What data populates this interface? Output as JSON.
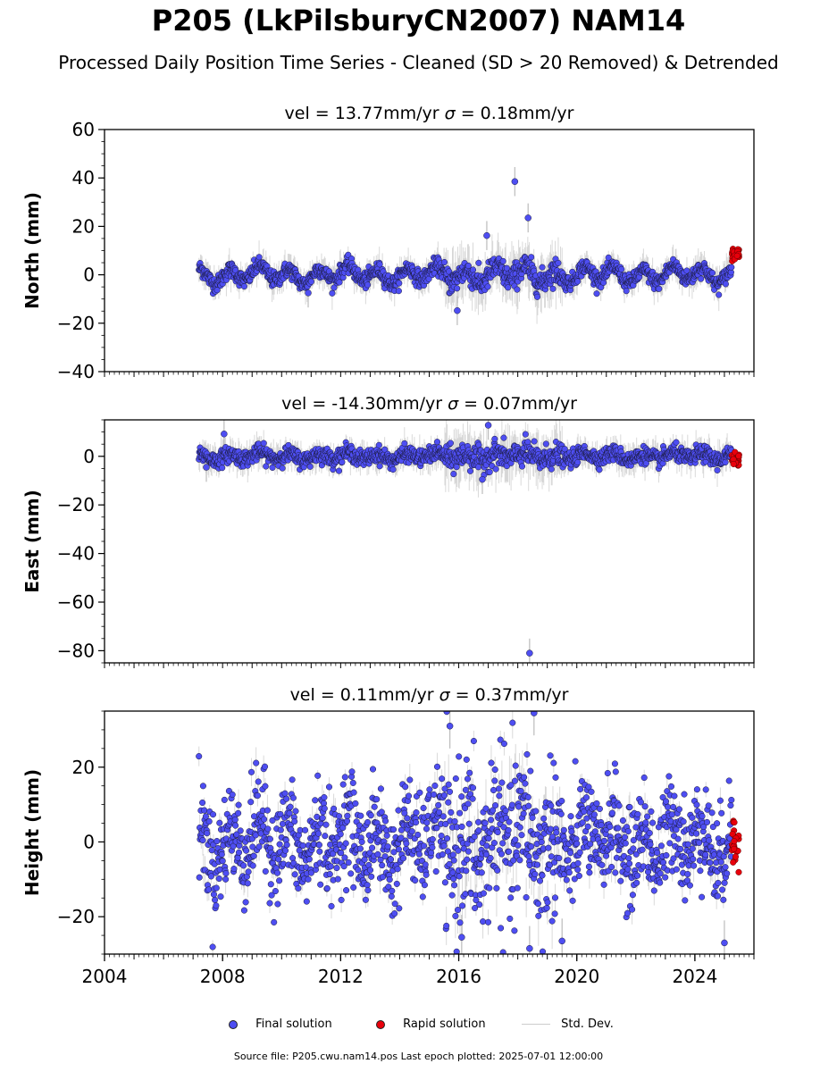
{
  "title": "P205 (LkPilsburyCN2007) NAM14",
  "subtitle": "Processed Daily Position Time Series - Cleaned (SD > 20 Removed) & Detrended",
  "legend": {
    "final": "Final solution",
    "rapid": "Rapid solution",
    "std": "Std. Dev."
  },
  "source": "Source file: P205.cwu.nam14.pos  Last epoch plotted: 2025-07-01 12:00:00",
  "colors": {
    "final": "#4e4ef2",
    "rapid": "#e8000b",
    "std": "#bbbbbb",
    "edge": "#1a1a3a"
  },
  "chart_data": [
    {
      "type": "scatter",
      "ylabel": "North (mm)",
      "title_prefix": "vel = 13.77mm/yr",
      "sigma_value": "= 0.18mm/yr",
      "xlim": [
        2004,
        2026
      ],
      "ylim": [
        -40,
        60
      ],
      "yticks": [
        -40,
        -20,
        0,
        20,
        40,
        60
      ],
      "xticks": [
        "2004",
        "2008",
        "2012",
        "2016",
        "2020",
        "2024"
      ],
      "show_xtick_labels": false,
      "series": [
        {
          "name": "Final solution",
          "x_range": [
            2007.2,
            2025.25
          ],
          "noise": 1.6,
          "amp": 2.8,
          "outliers": [
            [
              2017.9,
              38.5
            ],
            [
              2018.35,
              23.5
            ],
            [
              2016.95,
              16.2
            ],
            [
              2015.95,
              -14.8
            ],
            [
              2010.9,
              -7.5
            ]
          ]
        },
        {
          "name": "Rapid solution",
          "x_range": [
            2025.25,
            2025.5
          ],
          "center": 8.5,
          "spread": 1.2
        }
      ]
    },
    {
      "type": "scatter",
      "ylabel": "East (mm)",
      "title_prefix": "vel = -14.30mm/yr",
      "sigma_value": "= 0.07mm/yr",
      "xlim": [
        2004,
        2026
      ],
      "ylim": [
        -85,
        15
      ],
      "yticks": [
        -80,
        -60,
        -40,
        -20,
        0
      ],
      "xticks": [
        "2004",
        "2008",
        "2012",
        "2016",
        "2020",
        "2024"
      ],
      "show_xtick_labels": false,
      "series": [
        {
          "name": "Final solution",
          "x_range": [
            2007.2,
            2025.25
          ],
          "noise": 1.6,
          "amp": 1.2,
          "outliers": [
            [
              2018.4,
              -81
            ],
            [
              2017.0,
              12.8
            ],
            [
              2016.8,
              -9.5
            ],
            [
              2007.45,
              -4.5
            ],
            [
              2008.05,
              9.2
            ]
          ]
        },
        {
          "name": "Rapid solution",
          "x_range": [
            2025.25,
            2025.5
          ],
          "center": -1.5,
          "spread": 1.5
        }
      ]
    },
    {
      "type": "scatter",
      "ylabel": "Height (mm)",
      "title_prefix": "vel = 0.11mm/yr",
      "sigma_value": "= 0.37mm/yr",
      "xlim": [
        2004,
        2026
      ],
      "ylim": [
        -30,
        35
      ],
      "yticks": [
        -20,
        0,
        20
      ],
      "xticks": [
        "2004",
        "2008",
        "2012",
        "2016",
        "2020",
        "2024"
      ],
      "show_xtick_labels": true,
      "series": [
        {
          "name": "Final solution",
          "x_range": [
            2007.2,
            2025.25
          ],
          "noise": 6.5,
          "amp": 5,
          "outliers": [
            [
              2018.55,
              34.5
            ],
            [
              2015.7,
              31
            ],
            [
              2018.4,
              -28.5
            ],
            [
              2025.0,
              -27
            ],
            [
              2016.1,
              -25.5
            ],
            [
              2019.5,
              -26.5
            ]
          ]
        },
        {
          "name": "Rapid solution",
          "x_range": [
            2025.25,
            2025.5
          ],
          "center": 0,
          "spread": 3.5
        }
      ]
    }
  ]
}
